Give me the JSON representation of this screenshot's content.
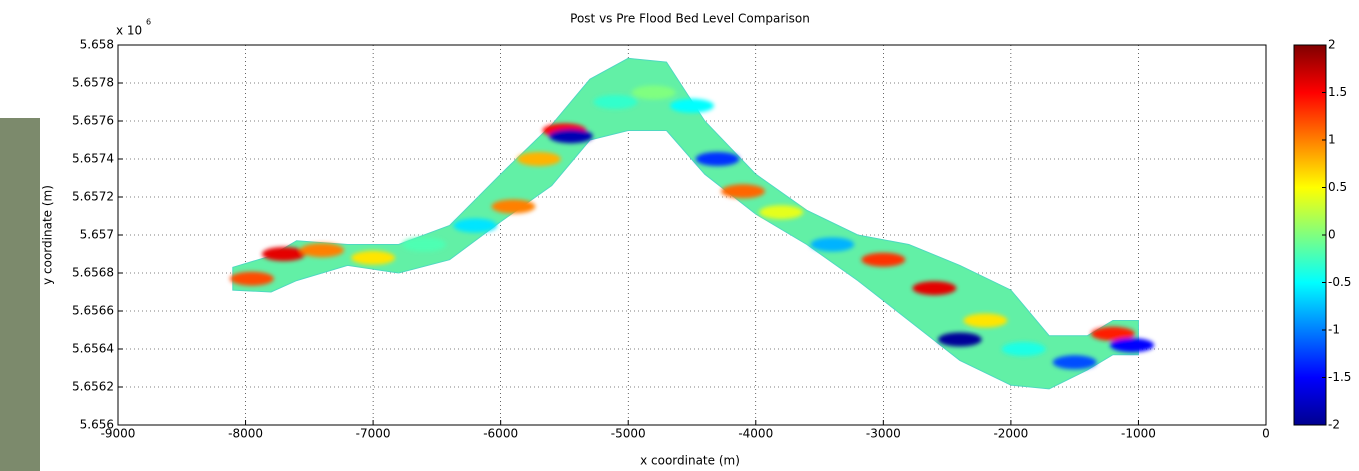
{
  "chart_data": {
    "type": "scatter",
    "title": "Post vs Pre Flood Bed Level Comparison",
    "xlabel": "x coordinate (m)",
    "ylabel": "y coordinate (m)",
    "y_multiplier": "x 10",
    "y_exponent": "6",
    "xlim": [
      -9000,
      0
    ],
    "xticks": [
      -9000,
      -8000,
      -7000,
      -6000,
      -5000,
      -4000,
      -3000,
      -2000,
      -1000,
      0
    ],
    "ylim": [
      5.656,
      5.658
    ],
    "yticks": [
      5.656,
      5.6562,
      5.6564,
      5.6566,
      5.6568,
      5.657,
      5.6572,
      5.6574,
      5.6576,
      5.6578,
      5.658
    ],
    "grid": true,
    "colormap": "jet",
    "clim": [
      -2,
      2
    ],
    "cticks": [
      -2,
      -1.5,
      -1,
      -0.5,
      0,
      0.5,
      1,
      1.5,
      2
    ],
    "river": {
      "color": "#62f0a6",
      "x": [
        -8100,
        -7800,
        -7600,
        -7200,
        -6800,
        -6400,
        -6000,
        -5600,
        -5300,
        -5000,
        -4700,
        -4400,
        -4000,
        -3600,
        -3200,
        -2800,
        -2400,
        -2000,
        -1700,
        -1400,
        -1200,
        -1000
      ],
      "upper": [
        5.65683,
        5.65689,
        5.65697,
        5.65695,
        5.65695,
        5.65705,
        5.65732,
        5.65758,
        5.65782,
        5.65793,
        5.65791,
        5.6576,
        5.65732,
        5.65713,
        5.657,
        5.65695,
        5.65684,
        5.65671,
        5.65647,
        5.65647,
        5.65655,
        5.65655
      ],
      "lower": [
        5.65671,
        5.6567,
        5.65676,
        5.65684,
        5.6568,
        5.65687,
        5.65707,
        5.65726,
        5.6575,
        5.65755,
        5.65755,
        5.65732,
        5.65711,
        5.65695,
        5.65676,
        5.65655,
        5.65634,
        5.65621,
        5.65619,
        5.65629,
        5.65637,
        5.65637
      ]
    },
    "points": {
      "x": [
        -7950,
        -7700,
        -7400,
        -7000,
        -6600,
        -6200,
        -5900,
        -5700,
        -5500,
        -5450,
        -5100,
        -4800,
        -4500,
        -4300,
        -4100,
        -3800,
        -3400,
        -3000,
        -2600,
        -2400,
        -2200,
        -1900,
        -1500,
        -1200,
        -1050
      ],
      "y": [
        5.65677,
        5.6569,
        5.65692,
        5.65688,
        5.65695,
        5.65705,
        5.65715,
        5.6574,
        5.65755,
        5.65752,
        5.6577,
        5.65775,
        5.65768,
        5.6574,
        5.65723,
        5.65712,
        5.65695,
        5.65687,
        5.65672,
        5.65645,
        5.65655,
        5.6564,
        5.65633,
        5.65648,
        5.65642
      ],
      "values": [
        1.2,
        1.6,
        1.0,
        0.6,
        -0.2,
        -0.6,
        1.0,
        0.8,
        1.5,
        -1.8,
        -0.3,
        0.0,
        -0.5,
        -1.3,
        1.1,
        0.4,
        -0.8,
        1.3,
        1.6,
        -1.9,
        0.6,
        -0.4,
        -1.2,
        1.4,
        -1.5
      ]
    }
  }
}
